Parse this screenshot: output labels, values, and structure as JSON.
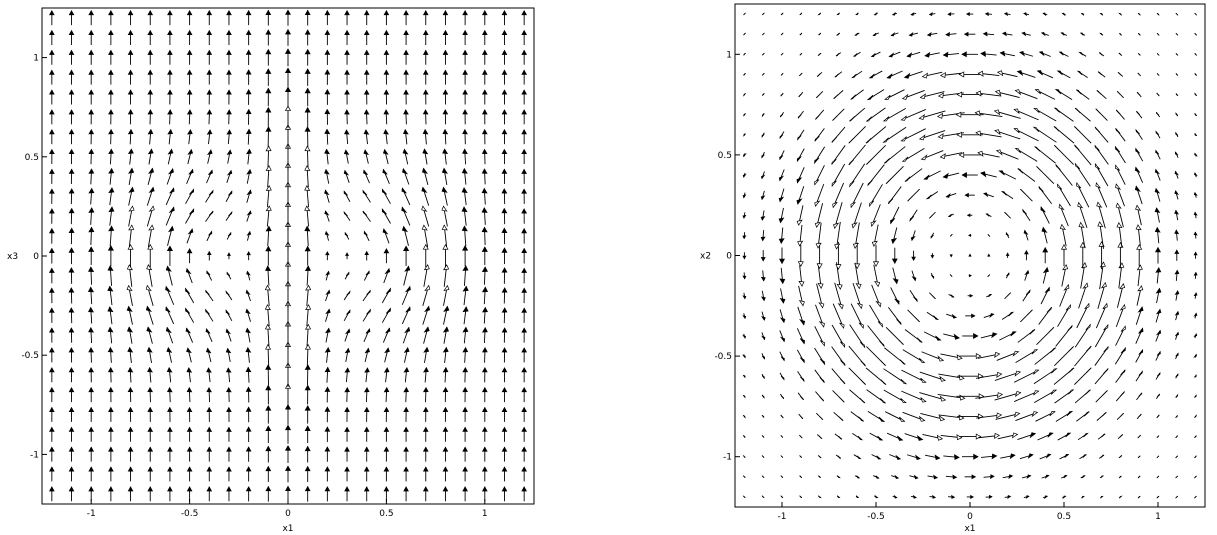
{
  "chart_data": [
    {
      "type": "vector-field",
      "xlabel": "x1",
      "ylabel": "x3",
      "xlim": [
        -1.25,
        1.25
      ],
      "ylim": [
        -1.25,
        1.25
      ],
      "xticks": [
        {
          "value": -1,
          "label": "-1"
        },
        {
          "value": -0.5,
          "label": "-0.5"
        },
        {
          "value": 0,
          "label": "0"
        },
        {
          "value": 0.5,
          "label": "0.5"
        },
        {
          "value": 1,
          "label": "1"
        }
      ],
      "yticks": [
        {
          "value": -1,
          "label": "-1"
        },
        {
          "value": -0.5,
          "label": "-0.5"
        },
        {
          "value": 0,
          "label": "0"
        },
        {
          "value": 0.5,
          "label": "0.5"
        },
        {
          "value": 1,
          "label": "1"
        }
      ],
      "grid": false,
      "field": "two counter-rotating vortices centered near (-0.5, 0) and (0.5, 0) on an upward background flow",
      "sample_count": 25
    },
    {
      "type": "vector-field",
      "xlabel": "x1",
      "ylabel": "x2",
      "xlim": [
        -1.25,
        1.25
      ],
      "ylim": [
        -1.25,
        1.25
      ],
      "xticks": [
        {
          "value": -1,
          "label": "-1"
        },
        {
          "value": -0.5,
          "label": "-0.5"
        },
        {
          "value": 0,
          "label": "0"
        },
        {
          "value": 0.5,
          "label": "0.5"
        },
        {
          "value": 1,
          "label": "1"
        }
      ],
      "yticks": [
        {
          "value": -1,
          "label": "-1"
        },
        {
          "value": -0.5,
          "label": "-0.5"
        },
        {
          "value": 0,
          "label": "0"
        },
        {
          "value": 0.5,
          "label": "0.5"
        },
        {
          "value": 1,
          "label": "1"
        }
      ],
      "grid": false,
      "field": "single counter-clockwise vortex ring centered at the origin",
      "sample_count": 25
    }
  ]
}
